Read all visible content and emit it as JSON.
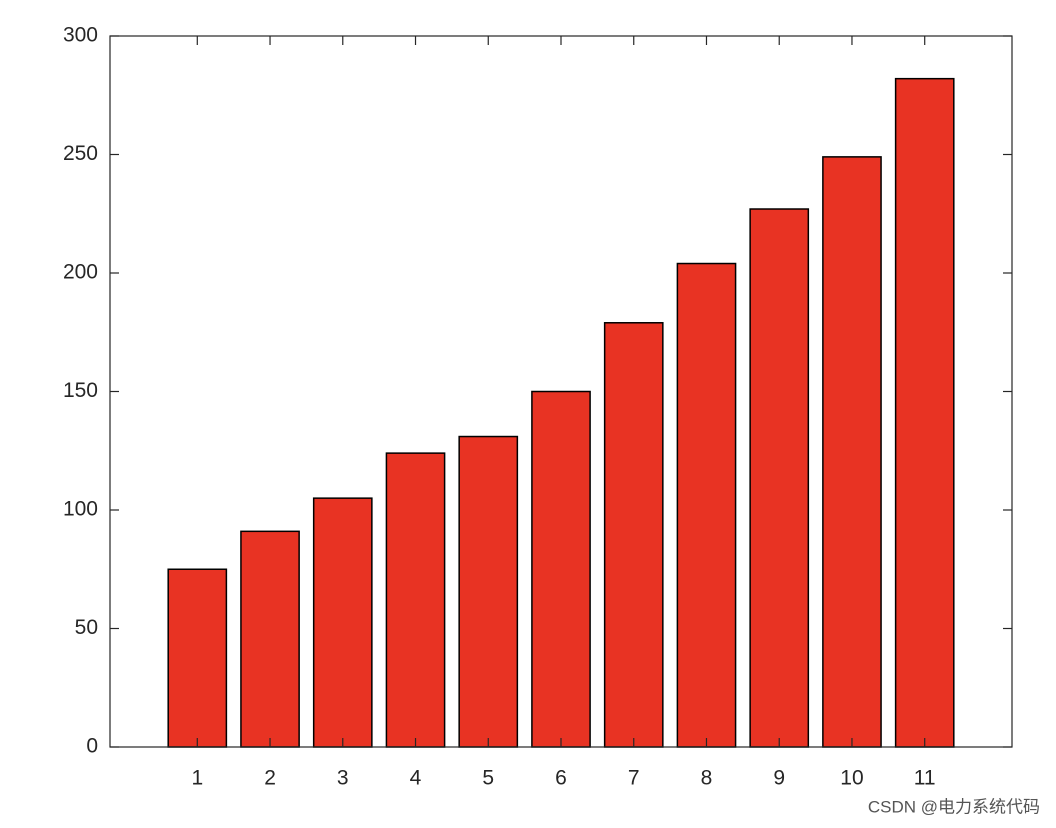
{
  "chart_data": {
    "type": "bar",
    "x": [
      1,
      2,
      3,
      4,
      5,
      6,
      7,
      8,
      9,
      10,
      11
    ],
    "values": [
      75,
      91,
      105,
      124,
      131,
      150,
      179,
      204,
      227,
      249,
      282
    ],
    "color": "#e83323",
    "xlim": [
      -0.2,
      12.2
    ],
    "xticks": [
      1,
      2,
      3,
      4,
      5,
      6,
      7,
      8,
      9,
      10,
      11
    ],
    "ylim": [
      0,
      300
    ],
    "yticks": [
      0,
      50,
      100,
      150,
      200,
      250,
      300
    ],
    "grid": false
  },
  "watermark": "CSDN @电力系统代码"
}
